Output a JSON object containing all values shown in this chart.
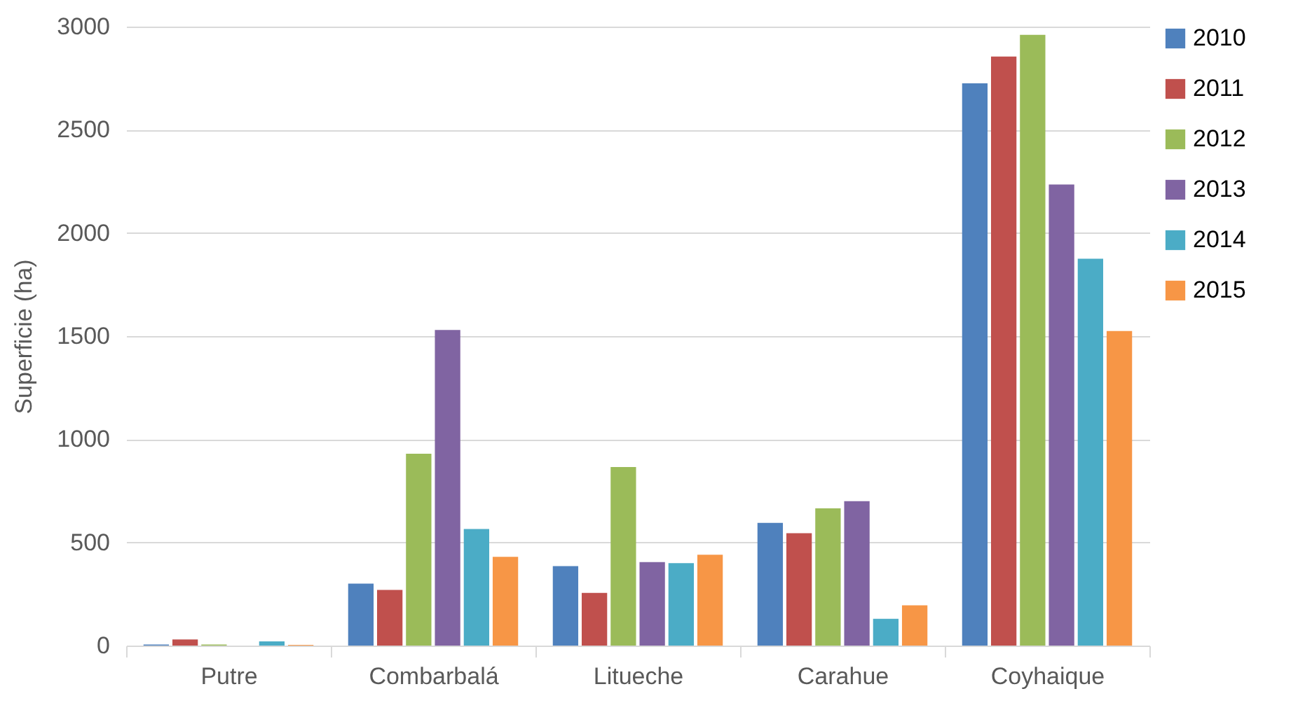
{
  "chart_data": {
    "type": "bar",
    "ylabel": "Superficie (ha)",
    "categories": [
      "Putre",
      "Combarbalá",
      "Litueche",
      "Carahue",
      "Coyhaique"
    ],
    "series": [
      {
        "name": "2010",
        "color": "#4f81bd",
        "values": [
          5,
          300,
          385,
          595,
          2725
        ]
      },
      {
        "name": "2011",
        "color": "#c0504d",
        "values": [
          30,
          270,
          255,
          545,
          2855
        ]
      },
      {
        "name": "2012",
        "color": "#9bbb59",
        "values": [
          5,
          930,
          865,
          665,
          2960
        ]
      },
      {
        "name": "2013",
        "color": "#8064a2",
        "values": [
          0,
          1530,
          405,
          700,
          2235
        ]
      },
      {
        "name": "2014",
        "color": "#4bacc6",
        "values": [
          20,
          565,
          400,
          130,
          1875
        ]
      },
      {
        "name": "2015",
        "color": "#f79646",
        "values": [
          3,
          430,
          440,
          195,
          1525
        ]
      }
    ],
    "ylim": [
      0,
      3000
    ],
    "yticks": [
      0,
      500,
      1000,
      1500,
      2000,
      2500,
      3000
    ],
    "grid": "y",
    "legend": "right"
  }
}
